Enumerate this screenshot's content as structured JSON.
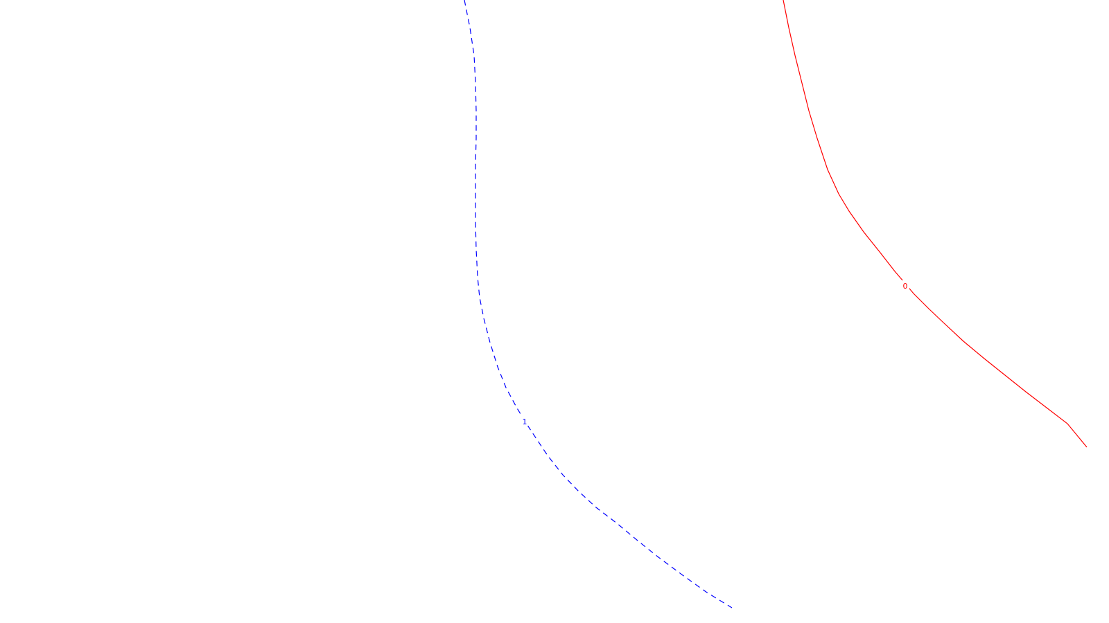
{
  "chart_data": {
    "type": "line",
    "title": "",
    "xlabel": "",
    "ylabel": "",
    "grid": false,
    "legend": "none",
    "series": [
      {
        "label": "0",
        "color": "#ff0000",
        "line_style": "solid",
        "points": [
          [
            1130,
            0
          ],
          [
            1138,
            40
          ],
          [
            1147,
            80
          ],
          [
            1157,
            120
          ],
          [
            1167,
            160
          ],
          [
            1179,
            200
          ],
          [
            1194,
            245
          ],
          [
            1210,
            280
          ],
          [
            1225,
            305
          ],
          [
            1246,
            335
          ],
          [
            1270,
            365
          ],
          [
            1291,
            392
          ],
          [
            1303,
            406
          ],
          [
            1318,
            424
          ],
          [
            1340,
            446
          ],
          [
            1360,
            465
          ],
          [
            1390,
            493
          ],
          [
            1420,
            518
          ],
          [
            1450,
            542
          ],
          [
            1480,
            566
          ],
          [
            1510,
            589
          ],
          [
            1540,
            612
          ],
          [
            1568,
            646
          ]
        ],
        "label_at": [
          1306,
          413
        ]
      },
      {
        "label": "1",
        "color": "#0000ff",
        "line_style": "dashed",
        "points": [
          [
            670,
            0
          ],
          [
            678,
            40
          ],
          [
            684,
            80
          ],
          [
            686,
            120
          ],
          [
            687,
            160
          ],
          [
            687,
            200
          ],
          [
            686,
            240
          ],
          [
            686,
            280
          ],
          [
            686,
            320
          ],
          [
            687,
            360
          ],
          [
            689,
            400
          ],
          [
            692,
            430
          ],
          [
            698,
            460
          ],
          [
            707,
            495
          ],
          [
            718,
            530
          ],
          [
            730,
            560
          ],
          [
            745,
            588
          ],
          [
            757,
            608
          ],
          [
            768,
            625
          ],
          [
            790,
            658
          ],
          [
            812,
            686
          ],
          [
            835,
            710
          ],
          [
            860,
            733
          ],
          [
            890,
            756
          ],
          [
            920,
            781
          ],
          [
            950,
            805
          ],
          [
            985,
            831
          ],
          [
            1020,
            856
          ],
          [
            1056,
            878
          ]
        ],
        "label_at": [
          757,
          609
        ]
      }
    ]
  }
}
